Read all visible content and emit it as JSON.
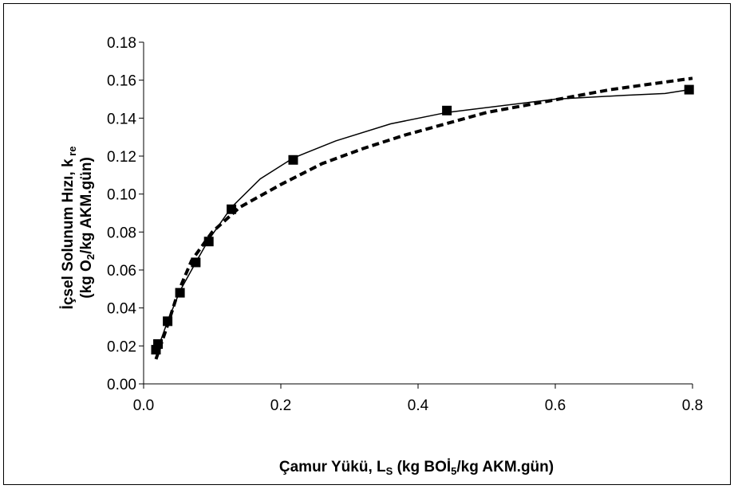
{
  "chart_data": {
    "type": "scatter",
    "xlabel": {
      "main": "Çamur Yükü, L",
      "sub": "S",
      "rest1": " (kg BOİ",
      "sub2": "5",
      "rest2": "/kg AKM.gün)"
    },
    "ylabel": {
      "line1_main": "İçsel Solunum Hızı, k",
      "line1_sub": " re",
      "line2_pre": "(kg O",
      "line2_sub": "2",
      "line2_post": "/kg AKM.gün)"
    },
    "xlim": [
      0,
      0.8
    ],
    "ylim": [
      0,
      0.18
    ],
    "x_ticks": [
      "0.0",
      "0.2",
      "0.4",
      "0.6",
      "0.8"
    ],
    "y_ticks": [
      "0.00",
      "0.02",
      "0.04",
      "0.06",
      "0.08",
      "0.10",
      "0.12",
      "0.14",
      "0.16",
      "0.18"
    ],
    "grid": false,
    "legend": "none",
    "series": [
      {
        "style": "markers",
        "marker": "square",
        "color": "#000000",
        "points": [
          [
            0.018,
            0.018
          ],
          [
            0.021,
            0.021
          ],
          [
            0.035,
            0.033
          ],
          [
            0.053,
            0.048
          ],
          [
            0.076,
            0.064
          ],
          [
            0.095,
            0.075
          ],
          [
            0.128,
            0.092
          ],
          [
            0.218,
            0.118
          ],
          [
            0.442,
            0.144
          ],
          [
            0.795,
            0.155
          ]
        ]
      },
      {
        "style": "solid",
        "color": "#000000",
        "points": [
          [
            0.018,
            0.016
          ],
          [
            0.035,
            0.033
          ],
          [
            0.053,
            0.049
          ],
          [
            0.076,
            0.064
          ],
          [
            0.095,
            0.076
          ],
          [
            0.128,
            0.093
          ],
          [
            0.17,
            0.108
          ],
          [
            0.218,
            0.119
          ],
          [
            0.28,
            0.128
          ],
          [
            0.36,
            0.137
          ],
          [
            0.442,
            0.143
          ],
          [
            0.6,
            0.15
          ],
          [
            0.7,
            0.152
          ],
          [
            0.76,
            0.153
          ],
          [
            0.795,
            0.155
          ]
        ]
      },
      {
        "style": "dashed",
        "color": "#000000",
        "points": [
          [
            0.018,
            0.013
          ],
          [
            0.035,
            0.031
          ],
          [
            0.05,
            0.048
          ],
          [
            0.07,
            0.065
          ],
          [
            0.1,
            0.08
          ],
          [
            0.14,
            0.093
          ],
          [
            0.2,
            0.105
          ],
          [
            0.26,
            0.116
          ],
          [
            0.32,
            0.124
          ],
          [
            0.38,
            0.131
          ],
          [
            0.44,
            0.137
          ],
          [
            0.5,
            0.143
          ],
          [
            0.56,
            0.147
          ],
          [
            0.62,
            0.151
          ],
          [
            0.68,
            0.155
          ],
          [
            0.74,
            0.158
          ],
          [
            0.8,
            0.161
          ]
        ]
      }
    ]
  }
}
